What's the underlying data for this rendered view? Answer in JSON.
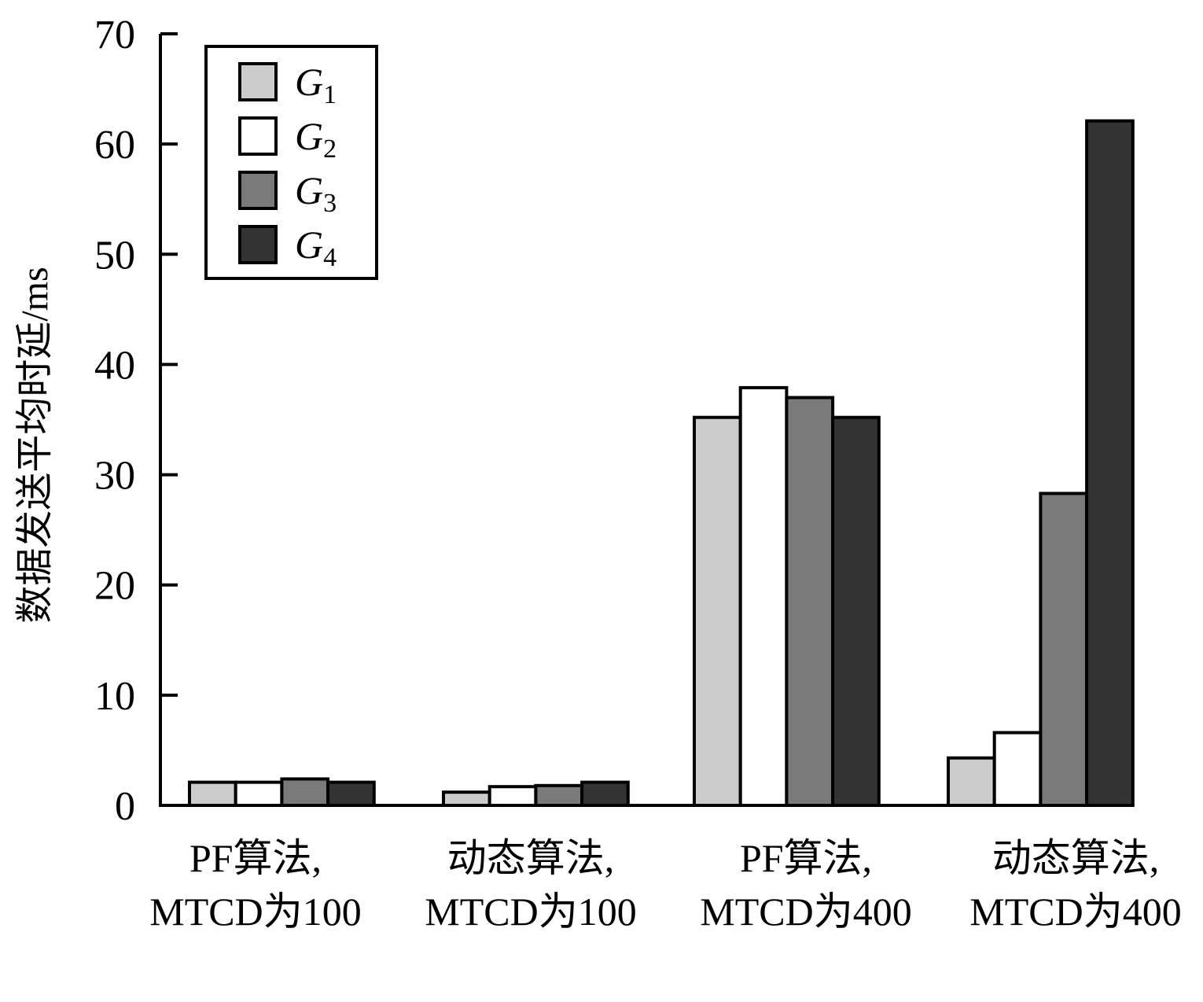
{
  "chart_data": {
    "type": "bar",
    "ylabel": "数据发送平均时延/ms",
    "xlabel": "",
    "ylim": [
      0,
      70
    ],
    "yticks": [
      0,
      10,
      20,
      30,
      40,
      50,
      60,
      70
    ],
    "grid": false,
    "legend_position": "top-left",
    "categories": [
      [
        "PF算法,",
        "MTCD为100"
      ],
      [
        "动态算法,",
        "MTCD为100"
      ],
      [
        "PF算法,",
        "MTCD为400"
      ],
      [
        "动态算法,",
        "MTCD为400"
      ]
    ],
    "series": [
      {
        "name": "G",
        "sub": "1",
        "color": "#cccccc",
        "values": [
          2.1,
          1.2,
          35.2,
          4.3
        ]
      },
      {
        "name": "G",
        "sub": "2",
        "color": "#ffffff",
        "values": [
          2.1,
          1.7,
          37.9,
          6.6
        ]
      },
      {
        "name": "G",
        "sub": "3",
        "color": "#7a7a7a",
        "values": [
          2.4,
          1.8,
          37.0,
          28.3
        ]
      },
      {
        "name": "G",
        "sub": "4",
        "color": "#333333",
        "values": [
          2.1,
          2.1,
          35.2,
          62.1
        ]
      }
    ]
  }
}
